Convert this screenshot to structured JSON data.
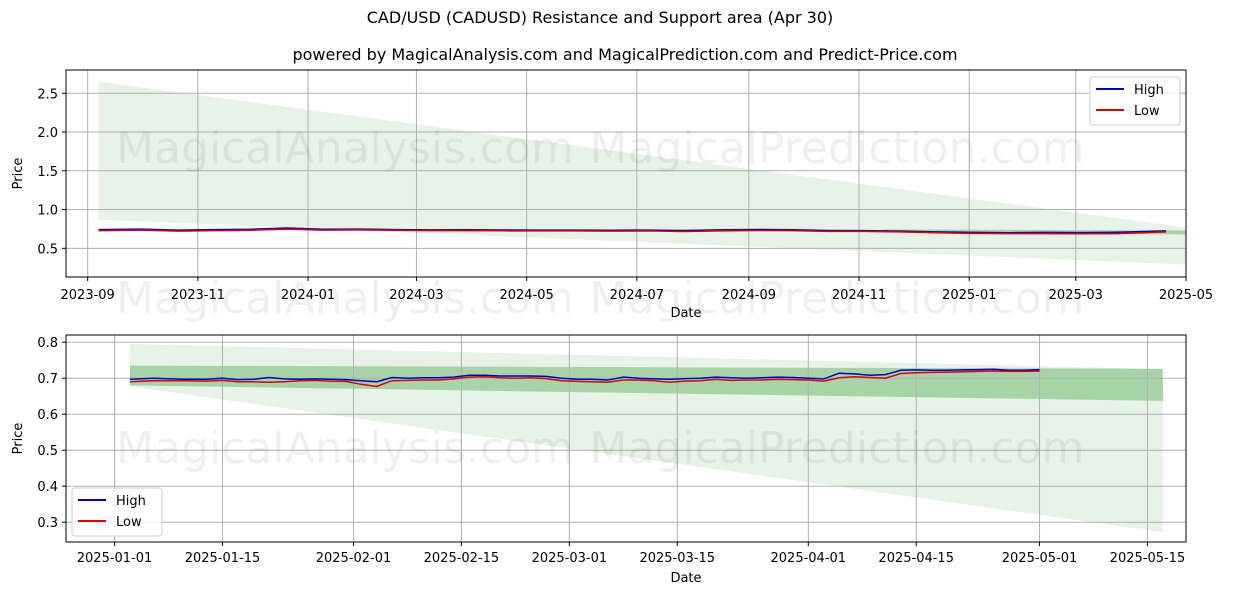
{
  "header": {
    "title": "CAD/USD (CADUSD) Resistance and Support area (Apr 30)",
    "subtitle": "powered by MagicalAnalysis.com and MagicalPrediction.com and Predict-Price.com"
  },
  "watermarks": [
    "MagicalAnalysis.com",
    "MagicalPrediction.com"
  ],
  "colors": {
    "high": "#0000cc",
    "low": "#dd0000",
    "band": "#2e9b2e",
    "grid": "#b0b0b0"
  },
  "chart_data": [
    {
      "type": "line",
      "xlabel": "Date",
      "ylabel": "Price",
      "xlim": [
        -12,
        608
      ],
      "ylim": [
        0.13,
        2.8
      ],
      "x_ticks": [
        {
          "x": 0,
          "label": "2023-09"
        },
        {
          "x": 61,
          "label": "2023-11"
        },
        {
          "x": 122,
          "label": "2024-01"
        },
        {
          "x": 182,
          "label": "2024-03"
        },
        {
          "x": 243,
          "label": "2024-05"
        },
        {
          "x": 304,
          "label": "2024-07"
        },
        {
          "x": 366,
          "label": "2024-09"
        },
        {
          "x": 427,
          "label": "2024-11"
        },
        {
          "x": 488,
          "label": "2025-01"
        },
        {
          "x": 547,
          "label": "2025-03"
        },
        {
          "x": 608,
          "label": "2025-05"
        }
      ],
      "y_ticks": [
        0.5,
        1.0,
        1.5,
        2.0,
        2.5
      ],
      "legend": {
        "position": "top-right",
        "entries": [
          "High",
          "Low"
        ]
      },
      "series": [
        {
          "name": "High",
          "x": [
            6,
            30,
            50,
            70,
            90,
            110,
            130,
            150,
            170,
            190,
            210,
            230,
            250,
            270,
            290,
            310,
            330,
            350,
            370,
            390,
            410,
            430,
            450,
            470,
            490,
            510,
            530,
            550,
            570,
            597
          ],
          "y": [
            0.742,
            0.748,
            0.735,
            0.742,
            0.745,
            0.762,
            0.745,
            0.748,
            0.742,
            0.738,
            0.74,
            0.736,
            0.735,
            0.735,
            0.733,
            0.735,
            0.73,
            0.737,
            0.743,
            0.74,
            0.73,
            0.728,
            0.722,
            0.712,
            0.705,
            0.702,
            0.705,
            0.703,
            0.708,
            0.725
          ]
        },
        {
          "name": "Low",
          "x": [
            6,
            30,
            50,
            70,
            90,
            110,
            130,
            150,
            170,
            190,
            210,
            230,
            250,
            270,
            290,
            310,
            330,
            350,
            370,
            390,
            410,
            430,
            450,
            470,
            490,
            510,
            530,
            550,
            570,
            597
          ],
          "y": [
            0.728,
            0.735,
            0.722,
            0.728,
            0.732,
            0.748,
            0.735,
            0.737,
            0.732,
            0.728,
            0.728,
            0.726,
            0.725,
            0.725,
            0.722,
            0.724,
            0.717,
            0.725,
            0.73,
            0.728,
            0.718,
            0.718,
            0.712,
            0.7,
            0.692,
            0.69,
            0.69,
            0.688,
            0.69,
            0.712
          ]
        }
      ],
      "support_area": {
        "x": [
          6,
          620
        ],
        "outer_upper": [
          2.65,
          0.73
        ],
        "outer_lower": [
          0.87,
          0.28
        ]
      },
      "resistance_band": {
        "x": [
          440,
          620
        ],
        "upper": [
          0.745,
          0.728
        ],
        "lower": [
          0.72,
          0.676
        ]
      }
    },
    {
      "type": "line",
      "xlabel": "Date",
      "ylabel": "Price",
      "xlim": [
        -6.3,
        139
      ],
      "ylim": [
        0.245,
        0.82
      ],
      "x_ticks": [
        {
          "x": 0,
          "label": "2025-01-01"
        },
        {
          "x": 14,
          "label": "2025-01-15"
        },
        {
          "x": 31,
          "label": "2025-02-01"
        },
        {
          "x": 45,
          "label": "2025-02-15"
        },
        {
          "x": 59,
          "label": "2025-03-01"
        },
        {
          "x": 73,
          "label": "2025-03-15"
        },
        {
          "x": 90,
          "label": "2025-04-01"
        },
        {
          "x": 104,
          "label": "2025-04-15"
        },
        {
          "x": 120,
          "label": "2025-05-01"
        },
        {
          "x": 134,
          "label": "2025-05-15"
        }
      ],
      "y_ticks": [
        0.3,
        0.4,
        0.5,
        0.6,
        0.7,
        0.8
      ],
      "legend": {
        "position": "lower-left",
        "entries": [
          "High",
          "Low"
        ]
      },
      "series": [
        {
          "name": "High",
          "x": [
            2,
            5,
            9,
            12,
            14,
            16,
            18,
            20,
            22,
            24,
            26,
            28,
            30,
            32,
            34,
            36,
            38,
            40,
            42,
            44,
            46,
            48,
            50,
            52,
            54,
            56,
            58,
            60,
            62,
            64,
            66,
            68,
            70,
            72,
            74,
            76,
            78,
            80,
            82,
            84,
            86,
            88,
            90,
            92,
            94,
            96,
            98,
            100,
            102,
            104,
            106,
            108,
            110,
            112,
            114,
            116,
            118,
            120
          ],
          "y": [
            0.697,
            0.7,
            0.697,
            0.697,
            0.7,
            0.696,
            0.697,
            0.702,
            0.698,
            0.697,
            0.698,
            0.697,
            0.696,
            0.693,
            0.69,
            0.702,
            0.7,
            0.701,
            0.701,
            0.703,
            0.708,
            0.708,
            0.706,
            0.706,
            0.706,
            0.705,
            0.7,
            0.697,
            0.697,
            0.695,
            0.703,
            0.7,
            0.698,
            0.697,
            0.699,
            0.7,
            0.703,
            0.701,
            0.7,
            0.701,
            0.703,
            0.702,
            0.7,
            0.698,
            0.714,
            0.712,
            0.708,
            0.71,
            0.722,
            0.723,
            0.722,
            0.722,
            0.723,
            0.724,
            0.725,
            0.722,
            0.722,
            0.724
          ]
        },
        {
          "name": "Low",
          "x": [
            2,
            5,
            9,
            12,
            14,
            16,
            18,
            20,
            22,
            24,
            26,
            28,
            30,
            32,
            34,
            36,
            38,
            40,
            42,
            44,
            46,
            48,
            50,
            52,
            54,
            56,
            58,
            60,
            62,
            64,
            66,
            68,
            70,
            72,
            74,
            76,
            78,
            80,
            82,
            84,
            86,
            88,
            90,
            92,
            94,
            96,
            98,
            100,
            102,
            104,
            106,
            108,
            110,
            112,
            114,
            116,
            118,
            120
          ],
          "y": [
            0.69,
            0.693,
            0.693,
            0.692,
            0.694,
            0.69,
            0.69,
            0.689,
            0.69,
            0.693,
            0.694,
            0.692,
            0.691,
            0.683,
            0.677,
            0.693,
            0.694,
            0.695,
            0.695,
            0.698,
            0.703,
            0.704,
            0.701,
            0.7,
            0.701,
            0.699,
            0.693,
            0.691,
            0.69,
            0.689,
            0.695,
            0.695,
            0.693,
            0.689,
            0.692,
            0.693,
            0.697,
            0.694,
            0.695,
            0.695,
            0.697,
            0.696,
            0.695,
            0.692,
            0.701,
            0.704,
            0.702,
            0.7,
            0.713,
            0.715,
            0.716,
            0.717,
            0.718,
            0.719,
            0.72,
            0.719,
            0.719,
            0.72
          ]
        }
      ],
      "support_area": {
        "x": [
          2,
          136
        ],
        "outer_upper": [
          0.795,
          0.725
        ],
        "outer_lower": [
          0.677,
          0.272
        ]
      },
      "resistance_band": {
        "x": [
          2,
          136
        ],
        "upper": [
          0.735,
          0.726
        ],
        "lower": [
          0.68,
          0.637
        ]
      }
    }
  ]
}
